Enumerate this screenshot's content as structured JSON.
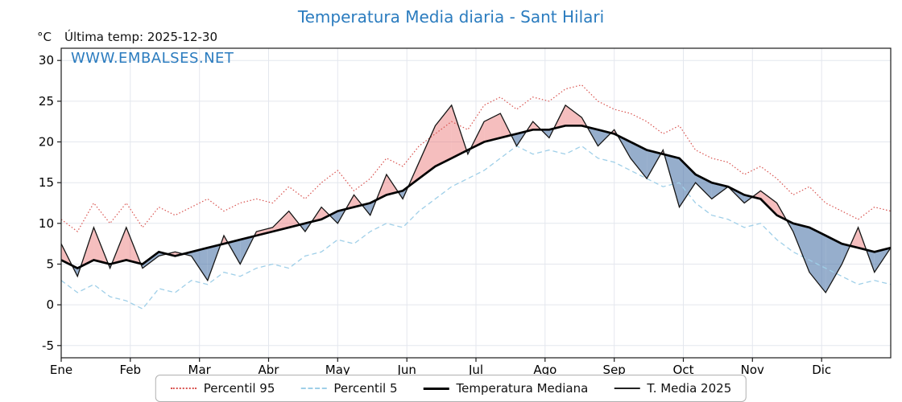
{
  "title": "Temperatura Media diaria - Sant Hilari",
  "header": {
    "units_label": "°C",
    "last_temp_label": "Última temp: 2025-12-30"
  },
  "watermark": "WWW.EMBALSES.NET",
  "colors": {
    "accent": "#2b7cbf",
    "frame": "#1a1a1a",
    "grid": "#e4e7ee",
    "tick_text": "#000000"
  },
  "chart_data": {
    "type": "line",
    "title": "Temperatura Media diaria - Sant Hilari",
    "xlabel": "",
    "ylabel": "°C",
    "x_unit": "week_of_year",
    "months": [
      "Ene",
      "Feb",
      "Mar",
      "Abr",
      "May",
      "Jun",
      "Jul",
      "Ago",
      "Sep",
      "Oct",
      "Nov",
      "Dic"
    ],
    "yticks": [
      -5,
      0,
      5,
      10,
      15,
      20,
      25,
      30
    ],
    "ylim": [
      -6.5,
      31.5
    ],
    "grid": true,
    "legend_position": "bottom",
    "series": [
      {
        "name": "Percentil 95",
        "color": "#d9534f",
        "style": "dotted",
        "values": [
          10.5,
          9,
          12.5,
          10,
          12.5,
          9.5,
          12,
          11,
          12,
          13,
          11.5,
          12.5,
          13,
          12.5,
          14.5,
          13,
          15,
          16.5,
          14,
          15.5,
          18,
          17,
          19.5,
          21,
          22.5,
          21.5,
          24.5,
          25.5,
          24,
          25.5,
          25,
          26.5,
          27,
          25,
          24,
          23.5,
          22.5,
          21,
          22,
          19,
          18,
          17.5,
          16,
          17,
          15.5,
          13.5,
          14.5,
          12.5,
          11.5,
          10.5,
          12,
          11.5
        ]
      },
      {
        "name": "Percentil 5",
        "color": "#9fcfe8",
        "style": "dashed",
        "values": [
          3,
          1.5,
          2.5,
          1,
          0.5,
          -0.5,
          2,
          1.5,
          3,
          2.5,
          4,
          3.5,
          4.5,
          5,
          4.5,
          6,
          6.5,
          8,
          7.5,
          9,
          10,
          9.5,
          11.5,
          13,
          14.5,
          15.5,
          16.5,
          18,
          19.5,
          18.5,
          19,
          18.5,
          19.5,
          18,
          17.5,
          16.5,
          15.5,
          14.5,
          15,
          12.5,
          11,
          10.5,
          9.5,
          10,
          8,
          6.5,
          5.5,
          4.5,
          3.5,
          2.5,
          3,
          2.5
        ]
      },
      {
        "name": "Temperatura Mediana",
        "color": "#000000",
        "style": "solid-thick",
        "values": [
          5.5,
          4.5,
          5.5,
          5,
          5.5,
          5,
          6.5,
          6,
          6.5,
          7,
          7.5,
          8,
          8.5,
          9,
          9.5,
          10,
          10.5,
          11.5,
          12,
          12.5,
          13.5,
          14,
          15.5,
          17,
          18,
          19,
          20,
          20.5,
          21,
          21.5,
          21.5,
          22,
          22,
          21.5,
          21,
          20,
          19,
          18.5,
          18,
          16,
          15,
          14.5,
          13.5,
          13,
          11,
          10,
          9.5,
          8.5,
          7.5,
          7,
          6.5,
          7
        ]
      },
      {
        "name": "T. Media 2025",
        "color": "#151515",
        "style": "solid-thin",
        "values": [
          7.5,
          3.5,
          9.5,
          4.5,
          9.5,
          4.5,
          6,
          6.5,
          6,
          3,
          8.5,
          5,
          9,
          9.5,
          11.5,
          9,
          12,
          10,
          13.5,
          11,
          16,
          13,
          17.5,
          22,
          24.5,
          18.5,
          22.5,
          23.5,
          19.5,
          22.5,
          20.5,
          24.5,
          23,
          19.5,
          21.5,
          18,
          15.5,
          19,
          12,
          15,
          13,
          14.5,
          12.5,
          14,
          12.5,
          9,
          4,
          1.5,
          5,
          9.5,
          4,
          7
        ]
      }
    ],
    "fills": {
      "above_color": "rgba(232,110,110,0.45)",
      "below_color": "rgba(80,120,170,0.60)"
    }
  },
  "legend": {
    "items": [
      {
        "label": "Percentil 95"
      },
      {
        "label": "Percentil 5"
      },
      {
        "label": "Temperatura Mediana"
      },
      {
        "label": "T. Media 2025"
      }
    ]
  }
}
